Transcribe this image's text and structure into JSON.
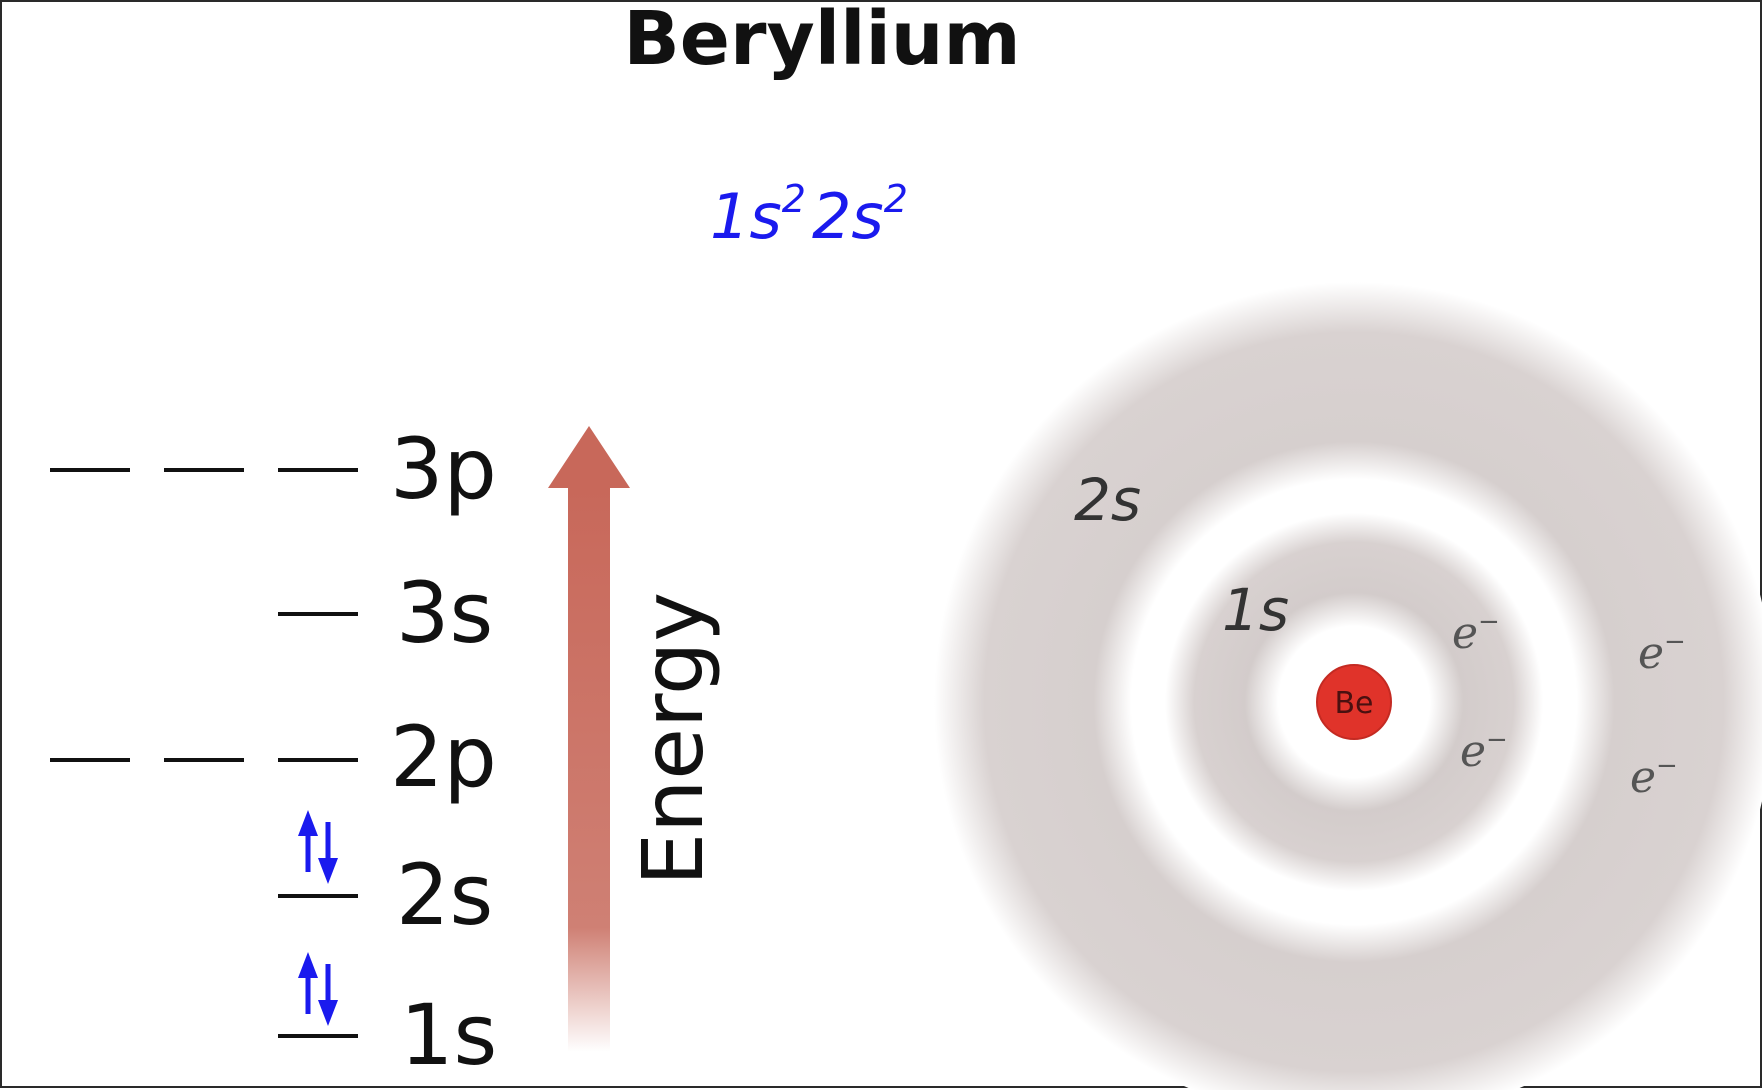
{
  "title": "Beryllium",
  "configuration": {
    "shells": [
      {
        "orbital": "1s",
        "count": "2"
      },
      {
        "orbital": "2s",
        "count": "2"
      }
    ]
  },
  "energy_axis": {
    "label": "Energy",
    "arrow_color": "#c8685a"
  },
  "levels": [
    {
      "label": "3p",
      "slots": 3,
      "electrons": 0
    },
    {
      "label": "3s",
      "slots": 1,
      "electrons": 0
    },
    {
      "label": "2p",
      "slots": 3,
      "electrons": 0
    },
    {
      "label": "2s",
      "slots": 1,
      "electrons": 2
    },
    {
      "label": "1s",
      "slots": 1,
      "electrons": 2
    }
  ],
  "atom": {
    "nucleus": "Be",
    "nucleus_color": "#e0332a",
    "orbital_color": "#d3cccb",
    "orbital_labels": [
      "1s",
      "2s"
    ],
    "electron_label": "e",
    "electron_charge": "−",
    "electrons": 4
  },
  "colors": {
    "spin_arrows": "#1a1aee",
    "configuration_text": "#1a1aee"
  }
}
